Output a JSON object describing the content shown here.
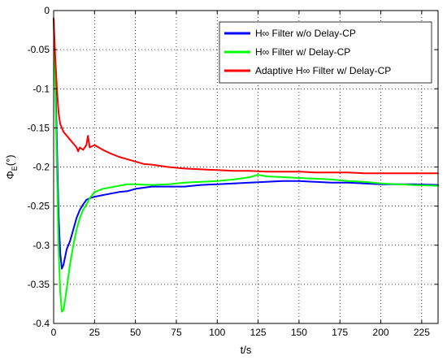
{
  "chart_data": {
    "type": "line",
    "title": "",
    "xlabel": "t/s",
    "ylabel_main": "Φ",
    "ylabel_sub": "E",
    "ylabel_unit": "(°)",
    "xlim": [
      0,
      235
    ],
    "ylim": [
      -0.4,
      0
    ],
    "xticks": [
      0,
      25,
      50,
      75,
      100,
      125,
      150,
      175,
      200,
      225
    ],
    "yticks": [
      0,
      -0.05,
      -0.1,
      -0.15,
      -0.2,
      -0.25,
      -0.3,
      -0.35,
      -0.4
    ],
    "ytick_labels": [
      "0",
      "-0.05",
      "-0.1",
      "-0.15",
      "-0.2",
      "-0.25",
      "-0.3",
      "-0.35",
      "-0.4"
    ],
    "grid": true,
    "legend_position": "top-right",
    "series": [
      {
        "name": "H∞ Filter w/o Delay-CP",
        "color": "#0000ff",
        "x": [
          0,
          1,
          2,
          3,
          4,
          5,
          6,
          7,
          8,
          9,
          10,
          12,
          14,
          16,
          18,
          20,
          22,
          25,
          30,
          35,
          40,
          45,
          50,
          60,
          70,
          80,
          90,
          100,
          110,
          120,
          130,
          140,
          150,
          160,
          170,
          180,
          190,
          200,
          210,
          220,
          235
        ],
        "y": [
          -0.01,
          -0.08,
          -0.17,
          -0.26,
          -0.31,
          -0.33,
          -0.325,
          -0.315,
          -0.305,
          -0.3,
          -0.295,
          -0.28,
          -0.265,
          -0.255,
          -0.248,
          -0.242,
          -0.24,
          -0.238,
          -0.236,
          -0.234,
          -0.232,
          -0.231,
          -0.228,
          -0.225,
          -0.225,
          -0.225,
          -0.223,
          -0.222,
          -0.221,
          -0.22,
          -0.219,
          -0.218,
          -0.218,
          -0.219,
          -0.22,
          -0.22,
          -0.221,
          -0.222,
          -0.222,
          -0.222,
          -0.223
        ]
      },
      {
        "name": "H∞ Filter w/ Delay-CP",
        "color": "#00ff00",
        "x": [
          0,
          1,
          2,
          3,
          4,
          5,
          6,
          7,
          8,
          9,
          10,
          12,
          14,
          16,
          18,
          20,
          22,
          25,
          30,
          35,
          40,
          45,
          50,
          60,
          70,
          80,
          90,
          100,
          110,
          120,
          125,
          130,
          140,
          150,
          160,
          170,
          180,
          190,
          200,
          210,
          220,
          235
        ],
        "y": [
          -0.01,
          -0.1,
          -0.2,
          -0.3,
          -0.36,
          -0.385,
          -0.383,
          -0.37,
          -0.355,
          -0.34,
          -0.325,
          -0.3,
          -0.28,
          -0.265,
          -0.255,
          -0.248,
          -0.24,
          -0.232,
          -0.228,
          -0.226,
          -0.224,
          -0.222,
          -0.222,
          -0.223,
          -0.222,
          -0.22,
          -0.219,
          -0.218,
          -0.216,
          -0.213,
          -0.21,
          -0.212,
          -0.213,
          -0.214,
          -0.215,
          -0.216,
          -0.218,
          -0.219,
          -0.221,
          -0.222,
          -0.223,
          -0.224
        ]
      },
      {
        "name": "Adaptive H∞ Filter w/ Delay-CP",
        "color": "#ff0000",
        "x": [
          0,
          1,
          2,
          3,
          4,
          5,
          6,
          8,
          10,
          12,
          14,
          15,
          16,
          18,
          20,
          21,
          22,
          25,
          30,
          35,
          40,
          45,
          50,
          55,
          60,
          70,
          80,
          90,
          100,
          110,
          120,
          130,
          140,
          150,
          160,
          170,
          180,
          190,
          200,
          210,
          220,
          235
        ],
        "y": [
          -0.01,
          -0.06,
          -0.1,
          -0.13,
          -0.145,
          -0.15,
          -0.155,
          -0.16,
          -0.165,
          -0.17,
          -0.175,
          -0.18,
          -0.175,
          -0.178,
          -0.172,
          -0.16,
          -0.175,
          -0.172,
          -0.178,
          -0.183,
          -0.187,
          -0.19,
          -0.193,
          -0.196,
          -0.197,
          -0.2,
          -0.202,
          -0.203,
          -0.204,
          -0.205,
          -0.205,
          -0.206,
          -0.206,
          -0.206,
          -0.207,
          -0.207,
          -0.207,
          -0.208,
          -0.208,
          -0.208,
          -0.208,
          -0.208
        ]
      }
    ]
  }
}
